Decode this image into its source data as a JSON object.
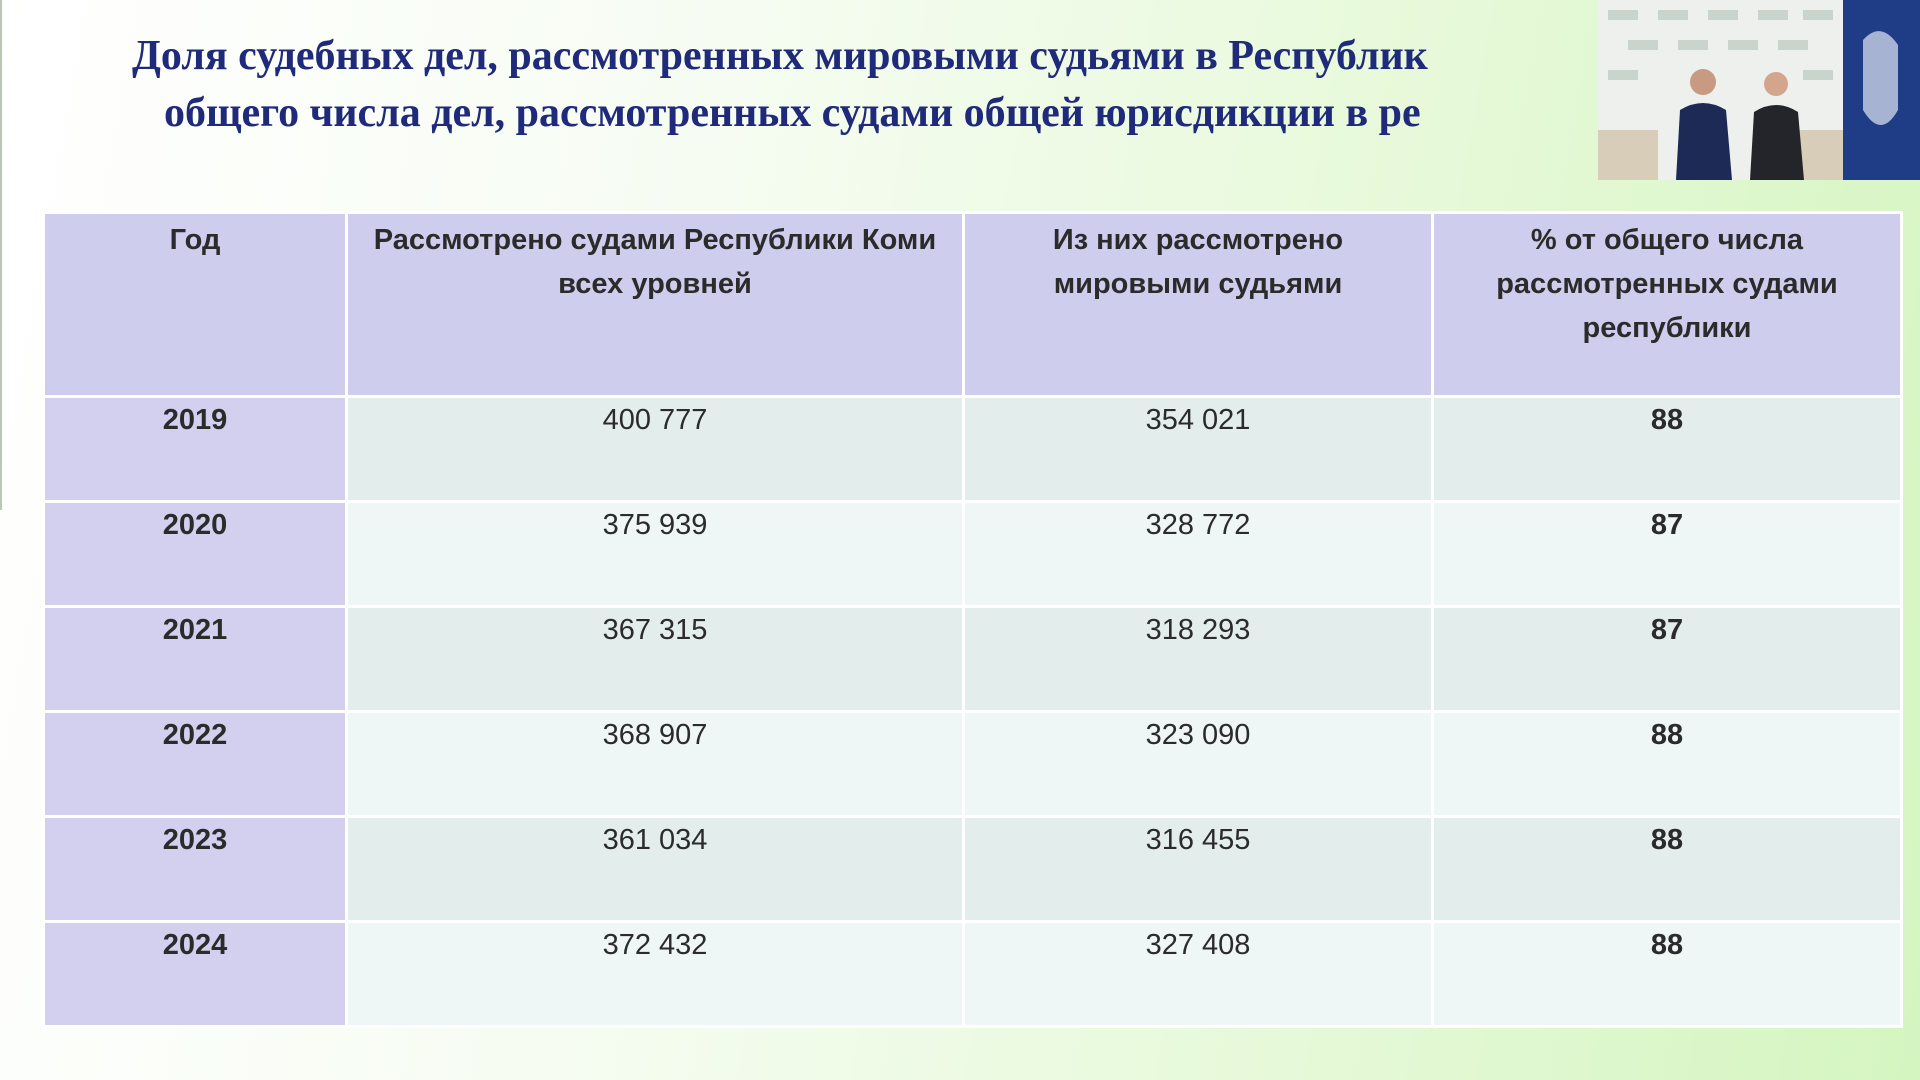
{
  "title": {
    "line1": "Доля судебных дел, рассмотренных мировыми судьями в Республик",
    "line2": "общего числа дел, рассмотренных судами общей юрисдикции в ре"
  },
  "table": {
    "header": [
      "Год",
      "Рассмотрено судами Республики Коми всех уровней",
      "Из них рассмотрено мировыми судьями",
      "% от общего числа рассмотренных судами республики"
    ],
    "rows": [
      [
        "2019",
        "400 777",
        "354 021",
        "88"
      ],
      [
        "2020",
        "375 939",
        "328 772",
        "87"
      ],
      [
        "2021",
        "367 315",
        "318 293",
        "87"
      ],
      [
        "2022",
        "368 907",
        "323 090",
        "88"
      ],
      [
        "2023",
        "361 034",
        "316 455",
        "88"
      ],
      [
        "2024",
        "372 432",
        "327 408",
        "88"
      ]
    ]
  }
}
